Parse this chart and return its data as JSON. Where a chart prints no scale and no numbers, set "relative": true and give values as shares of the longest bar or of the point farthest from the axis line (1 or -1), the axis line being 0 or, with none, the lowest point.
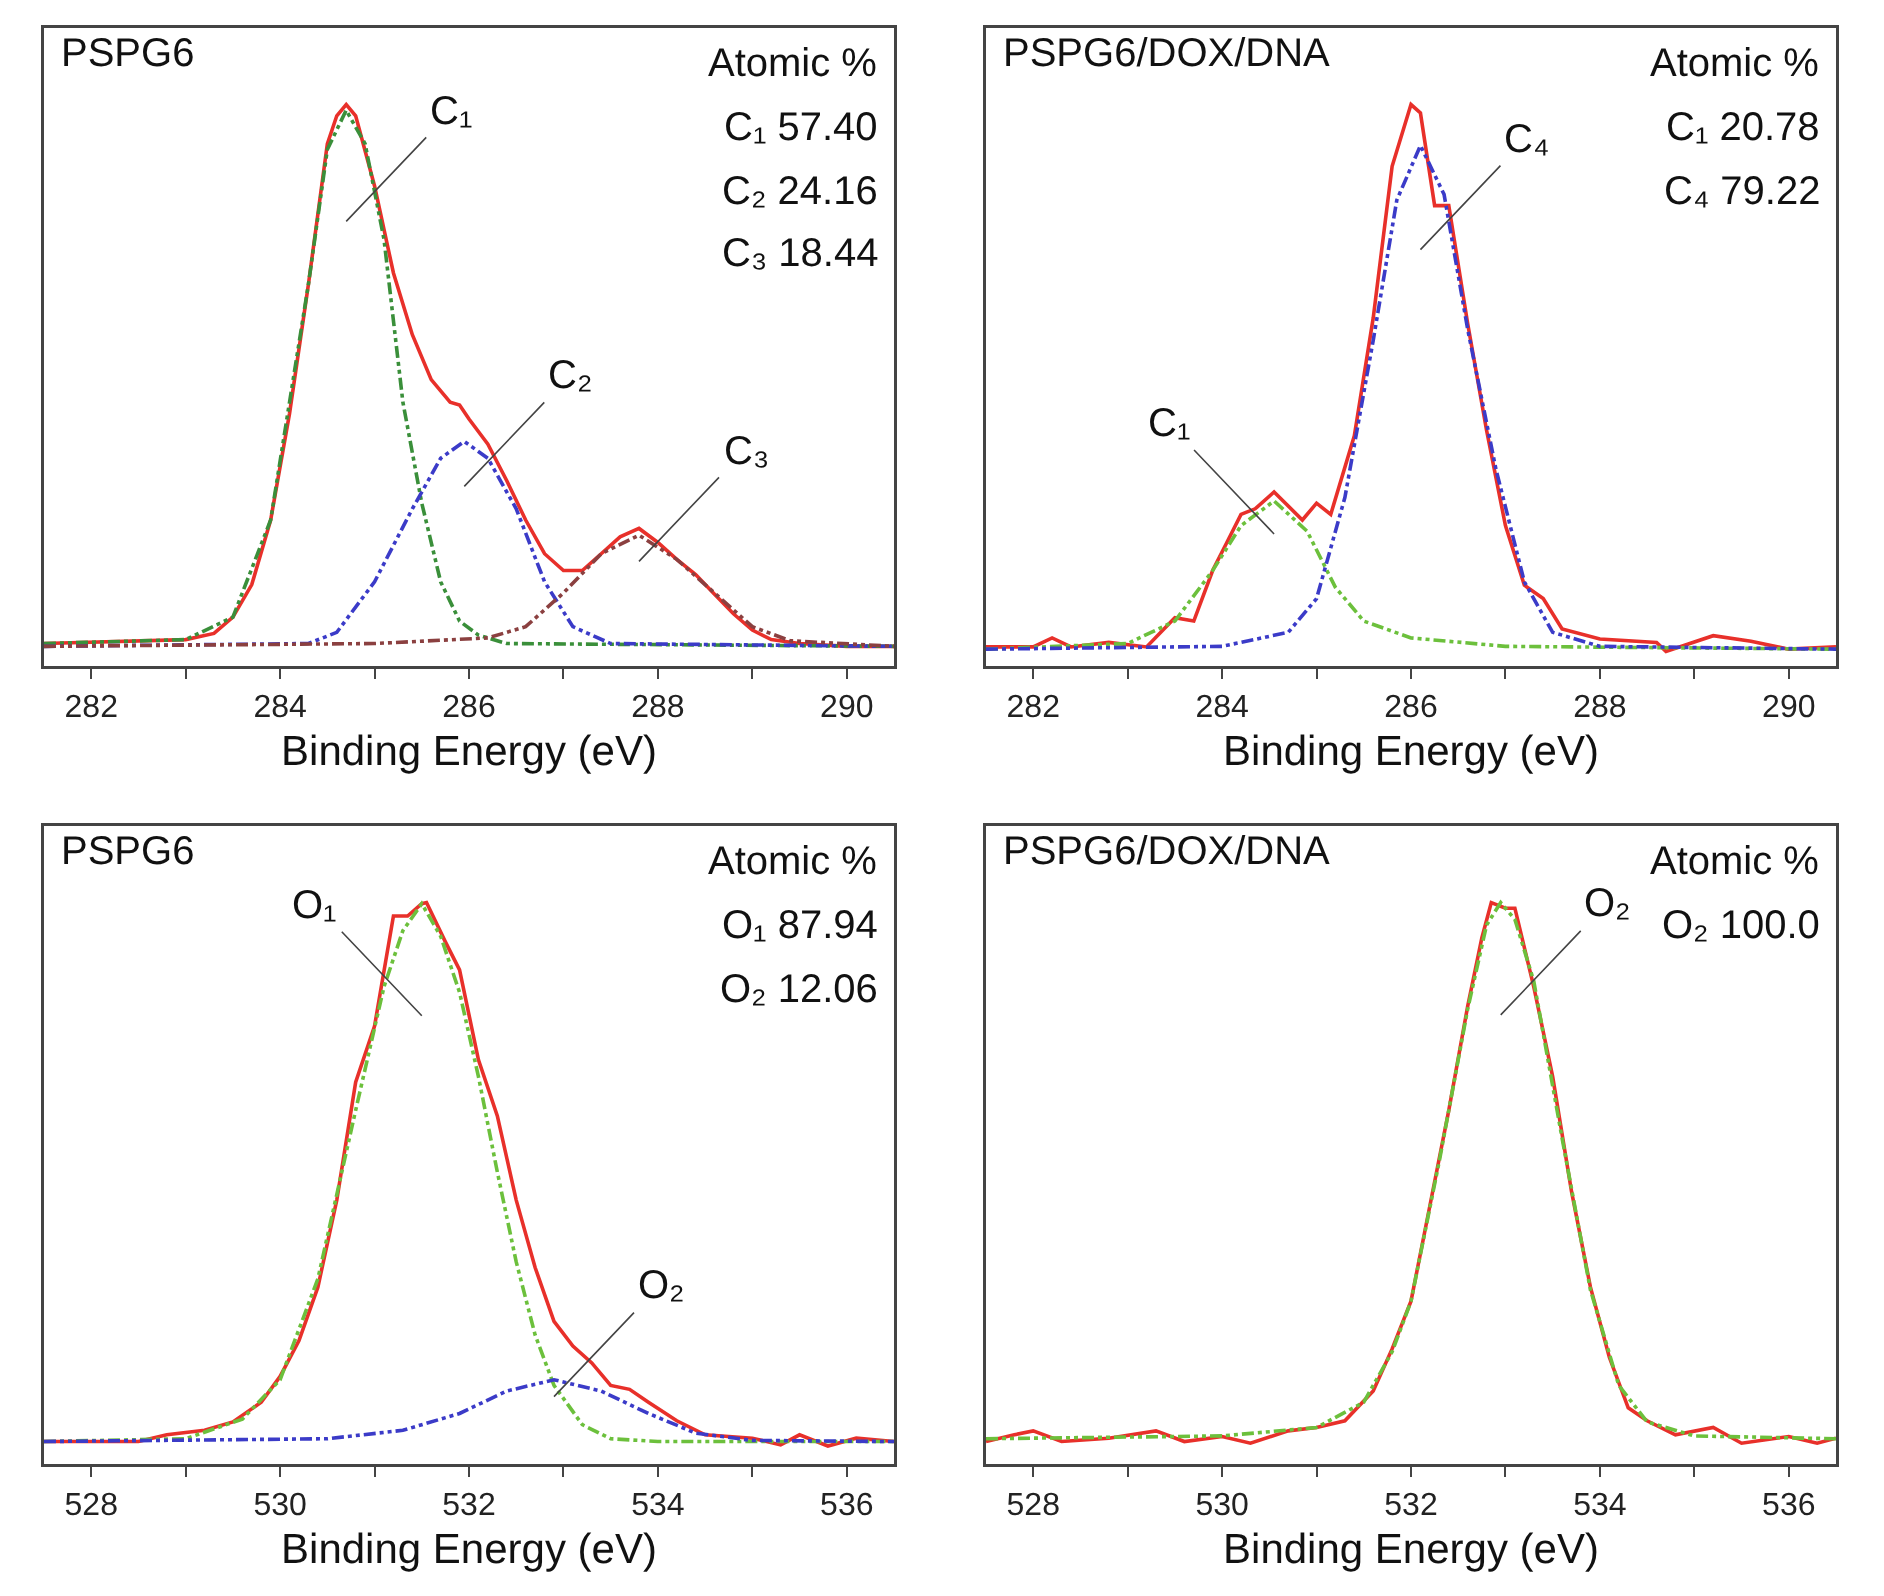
{
  "chart_data": [
    {
      "type": "line",
      "title": "PSPG6",
      "xlabel": "Binding Energy (eV)",
      "relative": true,
      "tick_labels": "x",
      "marker": "none",
      "xlim": [
        281.5,
        290.5
      ],
      "xticks": [
        282,
        {
          "value": 283,
          "label": null
        },
        284,
        {
          "value": 285,
          "label": null
        },
        286,
        {
          "value": 287,
          "label": null
        },
        288,
        {
          "value": 289,
          "label": null
        },
        290
      ],
      "series": [
        {
          "color": "#e8302a",
          "line_style": "solid",
          "x": [
            281.5,
            283.0,
            283.3,
            283.5,
            283.7,
            283.9,
            284.1,
            284.3,
            284.5,
            284.6,
            284.7,
            284.8,
            285.0,
            285.2,
            285.4,
            285.6,
            285.8,
            285.9,
            286.0,
            286.2,
            286.4,
            286.6,
            286.8,
            287.0,
            287.2,
            287.4,
            287.6,
            287.8,
            288.0,
            288.2,
            288.4,
            288.6,
            288.8,
            289.0,
            289.2,
            289.5,
            290.0,
            290.5
          ],
          "values": [
            0.04,
            0.047,
            0.058,
            0.087,
            0.145,
            0.26,
            0.45,
            0.68,
            0.93,
            0.98,
            1.0,
            0.98,
            0.855,
            0.7,
            0.59,
            0.51,
            0.47,
            0.465,
            0.44,
            0.395,
            0.33,
            0.26,
            0.2,
            0.17,
            0.17,
            0.2,
            0.23,
            0.245,
            0.22,
            0.19,
            0.163,
            0.128,
            0.093,
            0.064,
            0.047,
            0.04,
            0.035,
            0.035
          ]
        },
        {
          "name": "C₁",
          "color": "#3a8f3a",
          "line_style": "dashed",
          "x": [
            281.5,
            283.0,
            283.5,
            283.9,
            284.3,
            284.5,
            284.7,
            284.9,
            285.1,
            285.3,
            285.5,
            285.7,
            285.9,
            286.1,
            286.4,
            290.5
          ],
          "values": [
            0.04,
            0.047,
            0.087,
            0.26,
            0.68,
            0.92,
            0.99,
            0.93,
            0.76,
            0.47,
            0.29,
            0.15,
            0.08,
            0.055,
            0.04,
            0.035
          ]
        },
        {
          "name": "C₂",
          "color": "#3b3bc8",
          "line_style": "dashed",
          "x": [
            281.5,
            284.3,
            284.6,
            285.0,
            285.4,
            285.7,
            285.95,
            286.2,
            286.5,
            286.8,
            287.1,
            287.5,
            290.5
          ],
          "values": [
            0.035,
            0.04,
            0.06,
            0.15,
            0.28,
            0.37,
            0.4,
            0.37,
            0.28,
            0.15,
            0.07,
            0.04,
            0.035
          ]
        },
        {
          "name": "C₃",
          "color": "#8b4040",
          "line_style": "dashed",
          "x": [
            281.5,
            285.0,
            286.2,
            286.6,
            287.0,
            287.4,
            287.8,
            288.2,
            288.6,
            289.0,
            289.4,
            290.5
          ],
          "values": [
            0.035,
            0.04,
            0.05,
            0.07,
            0.13,
            0.2,
            0.233,
            0.19,
            0.13,
            0.07,
            0.045,
            0.035
          ]
        }
      ],
      "annotations": [
        "Atomic %",
        "C₁ 57.40",
        "C₂ 24.16",
        "C₃ 18.44"
      ]
    },
    {
      "type": "line",
      "title": "PSPG6/DOX/DNA",
      "xlabel": "Binding Energy (eV)",
      "relative": true,
      "tick_labels": "x",
      "marker": "none",
      "xlim": [
        281.5,
        290.5
      ],
      "xticks": [
        282,
        {
          "value": 283,
          "label": null
        },
        284,
        {
          "value": 285,
          "label": null
        },
        286,
        {
          "value": 287,
          "label": null
        },
        288,
        {
          "value": 289,
          "label": null
        },
        290
      ],
      "series": [
        {
          "color": "#e8302a",
          "line_style": "solid",
          "x": [
            281.5,
            282.0,
            282.2,
            282.4,
            282.8,
            283.2,
            283.5,
            283.7,
            283.9,
            284.05,
            284.2,
            284.35,
            284.55,
            284.85,
            285.0,
            285.15,
            285.4,
            285.6,
            285.8,
            286.0,
            286.1,
            286.25,
            286.4,
            286.6,
            286.8,
            287.0,
            287.2,
            287.4,
            287.6,
            288.0,
            288.6,
            288.7,
            289.2,
            289.6,
            290.0,
            290.5
          ],
          "values": [
            0.034,
            0.034,
            0.05,
            0.034,
            0.042,
            0.034,
            0.086,
            0.08,
            0.17,
            0.22,
            0.27,
            0.28,
            0.31,
            0.26,
            0.29,
            0.27,
            0.41,
            0.62,
            0.89,
            1.0,
            0.985,
            0.82,
            0.82,
            0.61,
            0.42,
            0.25,
            0.144,
            0.12,
            0.066,
            0.048,
            0.042,
            0.026,
            0.054,
            0.044,
            0.03,
            0.034
          ]
        },
        {
          "name": "C₁",
          "color": "#6cc03c",
          "line_style": "dashed",
          "x": [
            281.5,
            283.0,
            283.5,
            283.9,
            284.2,
            284.55,
            284.9,
            285.2,
            285.5,
            286.0,
            287.0,
            290.5
          ],
          "values": [
            0.03,
            0.04,
            0.08,
            0.17,
            0.25,
            0.294,
            0.24,
            0.14,
            0.08,
            0.05,
            0.035,
            0.03
          ]
        },
        {
          "name": "C₄",
          "color": "#3b3bc8",
          "line_style": "dashed",
          "x": [
            281.5,
            284.0,
            284.7,
            285.0,
            285.3,
            285.6,
            285.85,
            286.1,
            286.35,
            286.6,
            286.9,
            287.2,
            287.5,
            288.0,
            290.5
          ],
          "values": [
            0.03,
            0.035,
            0.06,
            0.12,
            0.3,
            0.58,
            0.83,
            0.927,
            0.84,
            0.6,
            0.35,
            0.15,
            0.06,
            0.035,
            0.03
          ]
        }
      ],
      "annotations": [
        "Atomic %",
        "C₁ 20.78",
        "C₄ 79.22"
      ]
    },
    {
      "type": "line",
      "title": "PSPG6",
      "xlabel": "Binding Energy (eV)",
      "relative": true,
      "tick_labels": "x",
      "marker": "none",
      "xlim": [
        527.5,
        536.5
      ],
      "xticks": [
        528,
        {
          "value": 529,
          "label": null
        },
        530,
        {
          "value": 531,
          "label": null
        },
        532,
        {
          "value": 533,
          "label": null
        },
        534,
        {
          "value": 535,
          "label": null
        },
        536
      ],
      "series": [
        {
          "color": "#e8302a",
          "line_style": "solid",
          "x": [
            527.5,
            528.5,
            528.8,
            529.2,
            529.5,
            529.8,
            530.0,
            530.2,
            530.4,
            530.6,
            530.8,
            531.0,
            531.2,
            531.35,
            531.5,
            531.55,
            531.75,
            531.9,
            532.1,
            532.3,
            532.5,
            532.7,
            532.9,
            533.1,
            533.3,
            533.5,
            533.7,
            533.9,
            534.2,
            534.5,
            535.0,
            535.3,
            535.5,
            535.8,
            536.1,
            536.5
          ],
          "values": [
            0.04,
            0.04,
            0.052,
            0.06,
            0.075,
            0.11,
            0.156,
            0.22,
            0.315,
            0.47,
            0.68,
            0.78,
            0.976,
            0.976,
            0.998,
            1.0,
            0.93,
            0.88,
            0.72,
            0.62,
            0.47,
            0.35,
            0.254,
            0.21,
            0.18,
            0.14,
            0.133,
            0.11,
            0.077,
            0.052,
            0.046,
            0.034,
            0.052,
            0.032,
            0.046,
            0.04
          ]
        },
        {
          "name": "O₁",
          "color": "#6cc03c",
          "line_style": "dashed",
          "x": [
            527.5,
            529.0,
            529.6,
            530.0,
            530.4,
            530.8,
            531.1,
            531.3,
            531.5,
            531.7,
            531.9,
            532.1,
            532.3,
            532.5,
            532.7,
            532.9,
            533.2,
            533.5,
            534.0,
            536.5
          ],
          "values": [
            0.04,
            0.045,
            0.08,
            0.15,
            0.33,
            0.63,
            0.85,
            0.95,
            0.998,
            0.94,
            0.84,
            0.69,
            0.52,
            0.36,
            0.23,
            0.14,
            0.07,
            0.045,
            0.04,
            0.04
          ]
        },
        {
          "name": "O₂",
          "color": "#3b3bc8",
          "line_style": "dashed",
          "x": [
            527.5,
            530.5,
            531.3,
            531.9,
            532.4,
            532.9,
            533.4,
            533.9,
            534.4,
            535.0,
            536.5
          ],
          "values": [
            0.04,
            0.045,
            0.06,
            0.09,
            0.13,
            0.15,
            0.13,
            0.09,
            0.055,
            0.042,
            0.04
          ]
        }
      ],
      "annotations": [
        "Atomic %",
        "O₁ 87.94",
        "O₂ 12.06"
      ]
    },
    {
      "type": "line",
      "title": "PSPG6/DOX/DNA",
      "xlabel": "Binding Energy (eV)",
      "relative": true,
      "tick_labels": "x",
      "marker": "none",
      "xlim": [
        527.5,
        536.5
      ],
      "xticks": [
        528,
        {
          "value": 529,
          "label": null
        },
        530,
        {
          "value": 531,
          "label": null
        },
        532,
        {
          "value": 533,
          "label": null
        },
        534,
        {
          "value": 535,
          "label": null
        },
        536
      ],
      "series": [
        {
          "color": "#e8302a",
          "line_style": "solid",
          "x": [
            527.5,
            527.8,
            528.0,
            528.3,
            528.8,
            529.3,
            529.6,
            530.0,
            530.3,
            530.7,
            531.0,
            531.3,
            531.6,
            531.8,
            532.0,
            532.2,
            532.4,
            532.6,
            532.75,
            532.85,
            533.0,
            533.1,
            533.3,
            533.5,
            533.7,
            533.9,
            534.1,
            534.3,
            534.5,
            534.8,
            535.2,
            535.5,
            536.0,
            536.3,
            536.5
          ],
          "values": [
            0.04,
            0.052,
            0.059,
            0.04,
            0.046,
            0.059,
            0.04,
            0.049,
            0.037,
            0.059,
            0.065,
            0.077,
            0.13,
            0.205,
            0.29,
            0.46,
            0.63,
            0.815,
            0.937,
            1.0,
            0.99,
            0.99,
            0.85,
            0.69,
            0.485,
            0.315,
            0.19,
            0.1,
            0.077,
            0.052,
            0.065,
            0.037,
            0.049,
            0.037,
            0.046
          ]
        },
        {
          "name": "O₂",
          "color": "#6cc03c",
          "line_style": "dashed",
          "x": [
            527.5,
            530.0,
            531.0,
            531.5,
            531.8,
            532.0,
            532.3,
            532.6,
            532.8,
            532.95,
            533.1,
            533.3,
            533.6,
            533.9,
            534.2,
            534.5,
            535.0,
            536.5
          ],
          "values": [
            0.045,
            0.05,
            0.065,
            0.11,
            0.2,
            0.29,
            0.54,
            0.81,
            0.96,
            1.0,
            0.97,
            0.86,
            0.58,
            0.31,
            0.14,
            0.075,
            0.05,
            0.045
          ]
        }
      ],
      "annotations": [
        "Atomic %",
        "O₂ 100.0"
      ]
    }
  ]
}
